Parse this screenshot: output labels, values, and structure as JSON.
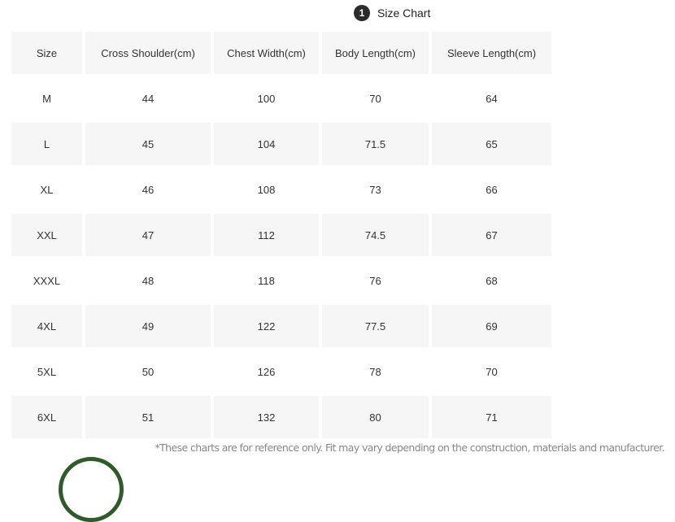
{
  "heading": {
    "number": "1",
    "title": "Size Chart"
  },
  "table": {
    "headers": [
      "Size",
      "Cross Shoulder(cm)",
      "Chest Width(cm)",
      "Body Length(cm)",
      "Sleeve Length(cm)"
    ],
    "rows": [
      [
        "M",
        "44",
        "100",
        "70",
        "64"
      ],
      [
        "L",
        "45",
        "104",
        "71.5",
        "65"
      ],
      [
        "XL",
        "46",
        "108",
        "73",
        "66"
      ],
      [
        "XXL",
        "47",
        "112",
        "74.5",
        "67"
      ],
      [
        "XXXL",
        "48",
        "118",
        "76",
        "68"
      ],
      [
        "4XL",
        "49",
        "122",
        "77.5",
        "69"
      ],
      [
        "5XL",
        "50",
        "126",
        "78",
        "70"
      ],
      [
        "6XL",
        "51",
        "132",
        "80",
        "71"
      ]
    ]
  },
  "note": "*These charts are for reference only. Fit may vary depending on the construction, materials and manufacturer.",
  "colors": {
    "shade": "#f6f6f6",
    "badge": "#2b2b2b",
    "circle": "#2f5a2a"
  }
}
